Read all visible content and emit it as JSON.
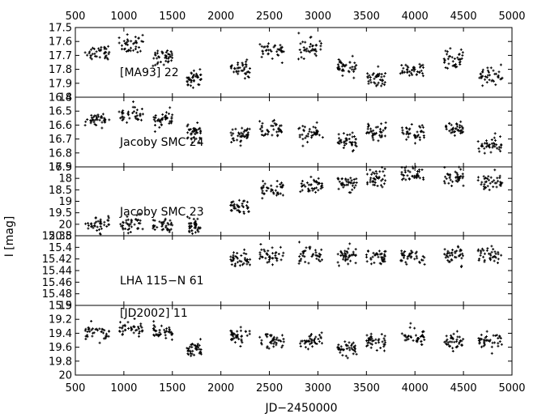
{
  "chart_data": {
    "type": "scatter",
    "xlabel": "JD−2450000",
    "ylabel": "I [mag]",
    "xlim": [
      500,
      5000
    ],
    "x_ticks": [
      "500",
      "1000",
      "1500",
      "2000",
      "2500",
      "3000",
      "3500",
      "4000",
      "4500",
      "5000"
    ],
    "marker_color": "#000000",
    "panels": [
      {
        "label": "[MA93] 22",
        "ylim": [
          17.55,
          18.0
        ],
        "y_ticks": [
          "17.5",
          "17.6",
          "17.7",
          "17.8",
          "17.9",
          "18"
        ],
        "clusters": [
          [
            600,
            850,
            17.72
          ],
          [
            950,
            1200,
            17.66
          ],
          [
            1300,
            1500,
            17.74
          ],
          [
            1650,
            1800,
            17.88
          ],
          [
            2100,
            2300,
            17.82
          ],
          [
            2400,
            2650,
            17.7
          ],
          [
            2800,
            3050,
            17.68
          ],
          [
            3200,
            3400,
            17.8
          ],
          [
            3500,
            3700,
            17.88
          ],
          [
            3850,
            4100,
            17.82
          ],
          [
            4300,
            4500,
            17.75
          ],
          [
            4650,
            4900,
            17.86
          ]
        ]
      },
      {
        "label": "Jacoby SMC 24",
        "ylim": [
          16.35,
          16.9
        ],
        "y_ticks": [
          "16.4",
          "16.5",
          "16.6",
          "16.7",
          "16.8",
          "16.9"
        ],
        "clusters": [
          [
            600,
            850,
            16.53
          ],
          [
            950,
            1200,
            16.48
          ],
          [
            1300,
            1500,
            16.52
          ],
          [
            1650,
            1800,
            16.63
          ],
          [
            2100,
            2300,
            16.65
          ],
          [
            2400,
            2650,
            16.6
          ],
          [
            2800,
            3050,
            16.63
          ],
          [
            3200,
            3400,
            16.7
          ],
          [
            3500,
            3700,
            16.62
          ],
          [
            3850,
            4100,
            16.63
          ],
          [
            4300,
            4500,
            16.6
          ],
          [
            4650,
            4900,
            16.73
          ]
        ]
      },
      {
        "label": "Jacoby SMC 23",
        "ylim": [
          17.3,
          20.05
        ],
        "y_ticks": [
          "17.5",
          "18",
          "18.5",
          "19",
          "19.5",
          "20",
          "20.5"
        ],
        "clusters": [
          [
            600,
            850,
            19.6
          ],
          [
            950,
            1200,
            19.6
          ],
          [
            1300,
            1500,
            19.6
          ],
          [
            1650,
            1800,
            19.6
          ],
          [
            2100,
            2300,
            18.9
          ],
          [
            2400,
            2650,
            18.2
          ],
          [
            2800,
            3050,
            18.0
          ],
          [
            3200,
            3400,
            17.95
          ],
          [
            3500,
            3700,
            17.75
          ],
          [
            3850,
            4100,
            17.6
          ],
          [
            4300,
            4500,
            17.7
          ],
          [
            4650,
            4900,
            17.85
          ]
        ]
      },
      {
        "label": "LHA 115−N 61",
        "ylim": [
          15.37,
          15.49
        ],
        "y_ticks": [
          "15.38",
          "15.4",
          "15.42",
          "15.44",
          "15.46",
          "15.48",
          "15.5"
        ],
        "clusters": [
          [
            2100,
            2300,
            15.41
          ],
          [
            2400,
            2650,
            15.405
          ],
          [
            2800,
            3050,
            15.405
          ],
          [
            3200,
            3400,
            15.405
          ],
          [
            3500,
            3700,
            15.405
          ],
          [
            3850,
            4100,
            15.405
          ],
          [
            4300,
            4500,
            15.405
          ],
          [
            4650,
            4900,
            15.405
          ]
        ]
      },
      {
        "label": "[JD2002] 11",
        "ylim": [
          19.2,
          20.0
        ],
        "y_ticks": [
          "19",
          "19.2",
          "19.4",
          "19.6",
          "19.8",
          "20"
        ],
        "clusters": [
          [
            600,
            850,
            19.5
          ],
          [
            950,
            1200,
            19.45
          ],
          [
            1300,
            1500,
            19.5
          ],
          [
            1650,
            1800,
            19.7
          ],
          [
            2100,
            2300,
            19.55
          ],
          [
            2400,
            2650,
            19.6
          ],
          [
            2800,
            3050,
            19.6
          ],
          [
            3200,
            3400,
            19.7
          ],
          [
            3500,
            3700,
            19.6
          ],
          [
            3850,
            4100,
            19.55
          ],
          [
            4300,
            4500,
            19.6
          ],
          [
            4650,
            4900,
            19.6
          ]
        ]
      }
    ]
  }
}
